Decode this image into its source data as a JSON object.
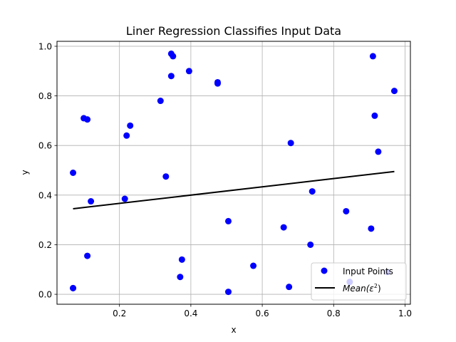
{
  "chart_data": {
    "type": "scatter",
    "title": "Liner Regression Classifies Input Data",
    "xlabel": "x",
    "ylabel": "y",
    "xlim": [
      0.025,
      1.015
    ],
    "ylim": [
      -0.04,
      1.02
    ],
    "grid": true,
    "legend_position": "lower-right",
    "x_ticks": [
      0.2,
      0.4,
      0.6,
      0.8,
      1.0
    ],
    "x_tick_labels": [
      "0.2",
      "0.4",
      "0.6",
      "0.8",
      "1.0"
    ],
    "y_ticks": [
      0.0,
      0.2,
      0.4,
      0.6,
      0.8,
      1.0
    ],
    "y_tick_labels": [
      "0.0",
      "0.2",
      "0.4",
      "0.6",
      "0.8",
      "1.0"
    ],
    "series": [
      {
        "name": "Input Points",
        "kind": "points",
        "color": "#0000ff",
        "x": [
          0.07,
          0.1,
          0.11,
          0.12,
          0.07,
          0.11,
          0.07,
          0.215,
          0.22,
          0.23,
          0.315,
          0.33,
          0.345,
          0.345,
          0.35,
          0.37,
          0.375,
          0.395,
          0.475,
          0.475,
          0.505,
          0.505,
          0.575,
          0.66,
          0.675,
          0.68,
          0.735,
          0.74,
          0.835,
          0.845,
          0.905,
          0.91,
          0.915,
          0.925,
          0.95,
          0.97
        ],
        "y": [
          0.49,
          0.71,
          0.705,
          0.375,
          0.025,
          0.155,
          0.025,
          0.385,
          0.64,
          0.68,
          0.78,
          0.475,
          0.97,
          0.88,
          0.96,
          0.07,
          0.14,
          0.9,
          0.855,
          0.85,
          0.01,
          0.295,
          0.115,
          0.27,
          0.03,
          0.61,
          0.2,
          0.415,
          0.335,
          0.05,
          0.265,
          0.96,
          0.72,
          0.575,
          0.09,
          0.82
        ]
      },
      {
        "name": "Mean(ε²)",
        "kind": "line",
        "color": "#000000",
        "x": [
          0.07,
          0.97
        ],
        "y": [
          0.345,
          0.495
        ]
      }
    ],
    "legend": {
      "entries": [
        {
          "label": "Input Points",
          "marker": "circle",
          "color": "#0000ff"
        },
        {
          "label_main": "Mean(ε",
          "label_sup": "2",
          "label_end": ")",
          "marker": "line",
          "color": "#000000"
        }
      ]
    }
  }
}
